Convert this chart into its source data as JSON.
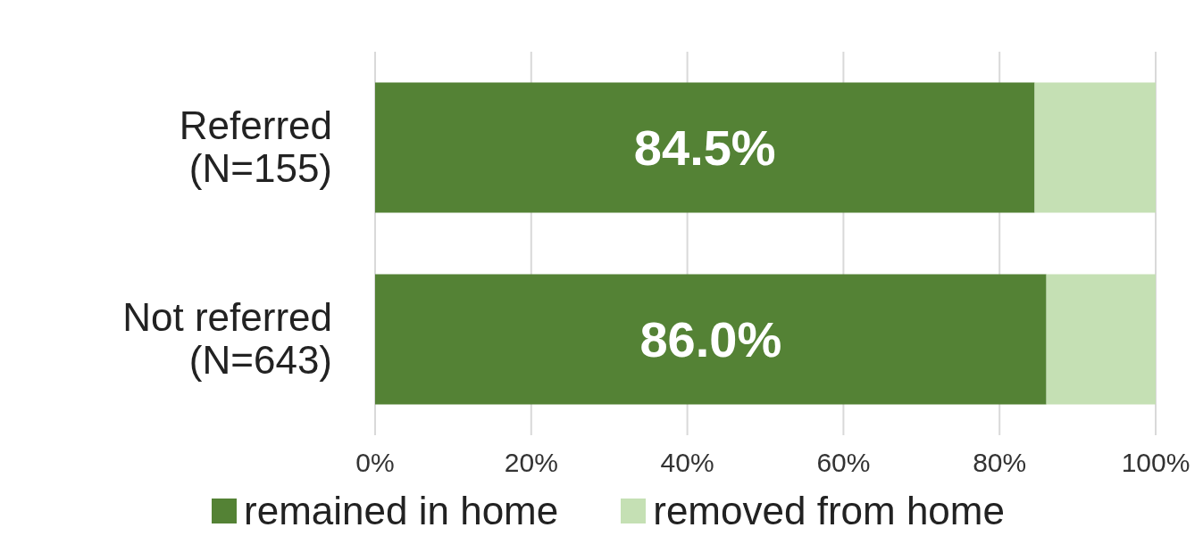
{
  "chart_data": {
    "type": "bar",
    "orientation": "horizontal",
    "stacked": true,
    "categories": [
      "Referred\n(N=155)",
      "Not referred\n(N=643)"
    ],
    "series": [
      {
        "name": "remained in home",
        "color": "#548235",
        "values": [
          84.5,
          86.0
        ],
        "value_labels": [
          "84.5%",
          "86.0%"
        ]
      },
      {
        "name": "removed from home",
        "color": "#c5e0b4",
        "values": [
          15.5,
          14.0
        ]
      }
    ],
    "xlim": [
      0,
      100
    ],
    "xticks": [
      {
        "value": 0,
        "label": "0%"
      },
      {
        "value": 20,
        "label": "20%"
      },
      {
        "value": 40,
        "label": "40%"
      },
      {
        "value": 60,
        "label": "60%"
      },
      {
        "value": 80,
        "label": "80%"
      },
      {
        "value": 100,
        "label": "100%"
      }
    ],
    "grid": "x",
    "legend": "bottom"
  }
}
